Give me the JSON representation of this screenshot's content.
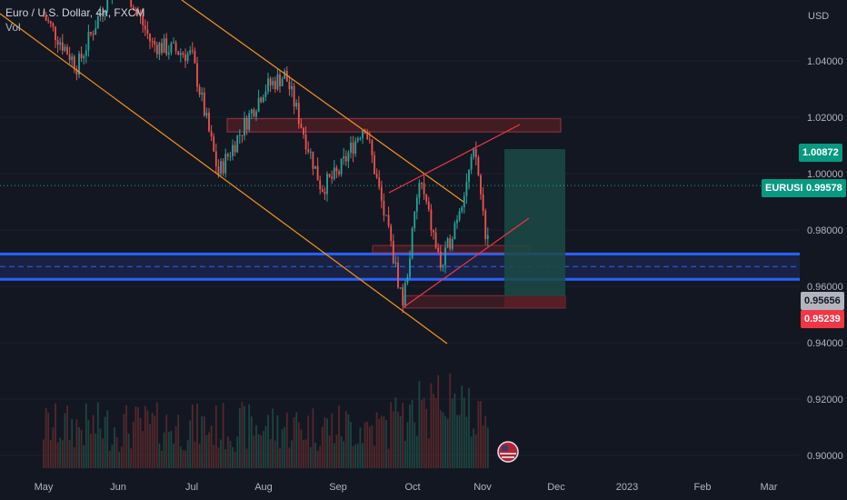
{
  "header": {
    "title": "Euro / U.S. Dollar, 4h, FXCM",
    "volume_label": "Vol"
  },
  "axis": {
    "currency": "USD",
    "y_ticks": [
      "1.04000",
      "1.02000",
      "1.00000",
      "0.98000",
      "0.96000",
      "0.94000",
      "0.92000",
      "0.90000"
    ],
    "x_ticks": [
      "May",
      "Jun",
      "Jul",
      "Aug",
      "Sep",
      "Oct",
      "Nov",
      "Dec",
      "2023",
      "Feb",
      "Mar"
    ]
  },
  "price_tags": {
    "target": "1.00872",
    "symbol": "EURUSD",
    "last": "0.99578",
    "entry": "0.95656",
    "stop": "0.95239"
  },
  "colors": {
    "background": "#131722",
    "up": "#26a69a",
    "down": "#ef5350",
    "channel": "#f7931a",
    "support_zone": "#2962ff",
    "target_zone": "#1b4a45",
    "stop_zone": "#5b1f26"
  },
  "chart_data": {
    "type": "candlestick",
    "symbol": "EURUSD",
    "timeframe": "4h",
    "ylim": [
      0.898,
      1.062
    ],
    "y_ticks": [
      1.04,
      1.02,
      1.0,
      0.98,
      0.96,
      0.94,
      0.92,
      0.9
    ],
    "x_ticks": [
      "May",
      "Jun",
      "Jul",
      "Aug",
      "Sep",
      "Oct",
      "Nov",
      "Dec",
      "2023",
      "Feb",
      "Mar"
    ],
    "price_path": [
      {
        "t": "May",
        "p": 1.056
      },
      {
        "t": "May 15",
        "p": 1.038
      },
      {
        "t": "Jun",
        "p": 1.072
      },
      {
        "t": "Jun 15",
        "p": 1.046
      },
      {
        "t": "Jul",
        "p": 1.042
      },
      {
        "t": "Jul 12",
        "p": 1.0
      },
      {
        "t": "Aug",
        "p": 1.03
      },
      {
        "t": "Aug 10",
        "p": 1.035
      },
      {
        "t": "Aug 25",
        "p": 0.995
      },
      {
        "t": "Sep",
        "p": 1.0
      },
      {
        "t": "Sep 12",
        "p": 1.018
      },
      {
        "t": "Sep 28",
        "p": 0.954
      },
      {
        "t": "Oct 4",
        "p": 0.998
      },
      {
        "t": "Oct 13",
        "p": 0.966
      },
      {
        "t": "Oct 27",
        "p": 1.008
      },
      {
        "t": "Nov 3",
        "p": 0.974
      },
      {
        "t": "Nov 4",
        "p": 0.996
      }
    ],
    "last_price": 0.99578,
    "position": {
      "target": 1.00872,
      "entry": 0.95656,
      "stop": 0.95239
    },
    "support_zone": [
      0.9625,
      0.9715
    ],
    "resistance_zone": [
      1.0148,
      1.0195
    ]
  }
}
